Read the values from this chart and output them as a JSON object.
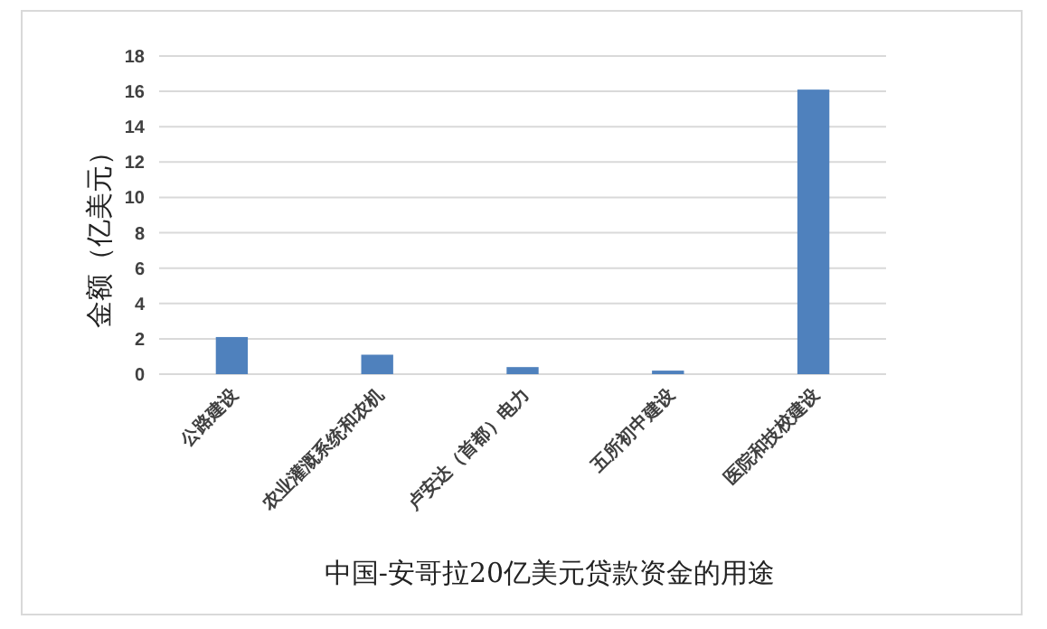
{
  "chart_data": {
    "type": "bar",
    "xlabel": "中国-安哥拉20亿美元贷款资金的用途",
    "ylabel": "金额（亿美元）",
    "categories": [
      "公路建设",
      "农业灌溉系统和农机",
      "卢安达（首都）电力",
      "五所初中建设",
      "医院和技校建设"
    ],
    "values": [
      2.1,
      1.1,
      0.4,
      0.2,
      16.1
    ],
    "color": "#4f81bd",
    "ylim": [
      0,
      18
    ],
    "yticks": [
      0,
      2,
      4,
      6,
      8,
      10,
      12,
      14,
      16,
      18
    ],
    "grid": "y"
  }
}
